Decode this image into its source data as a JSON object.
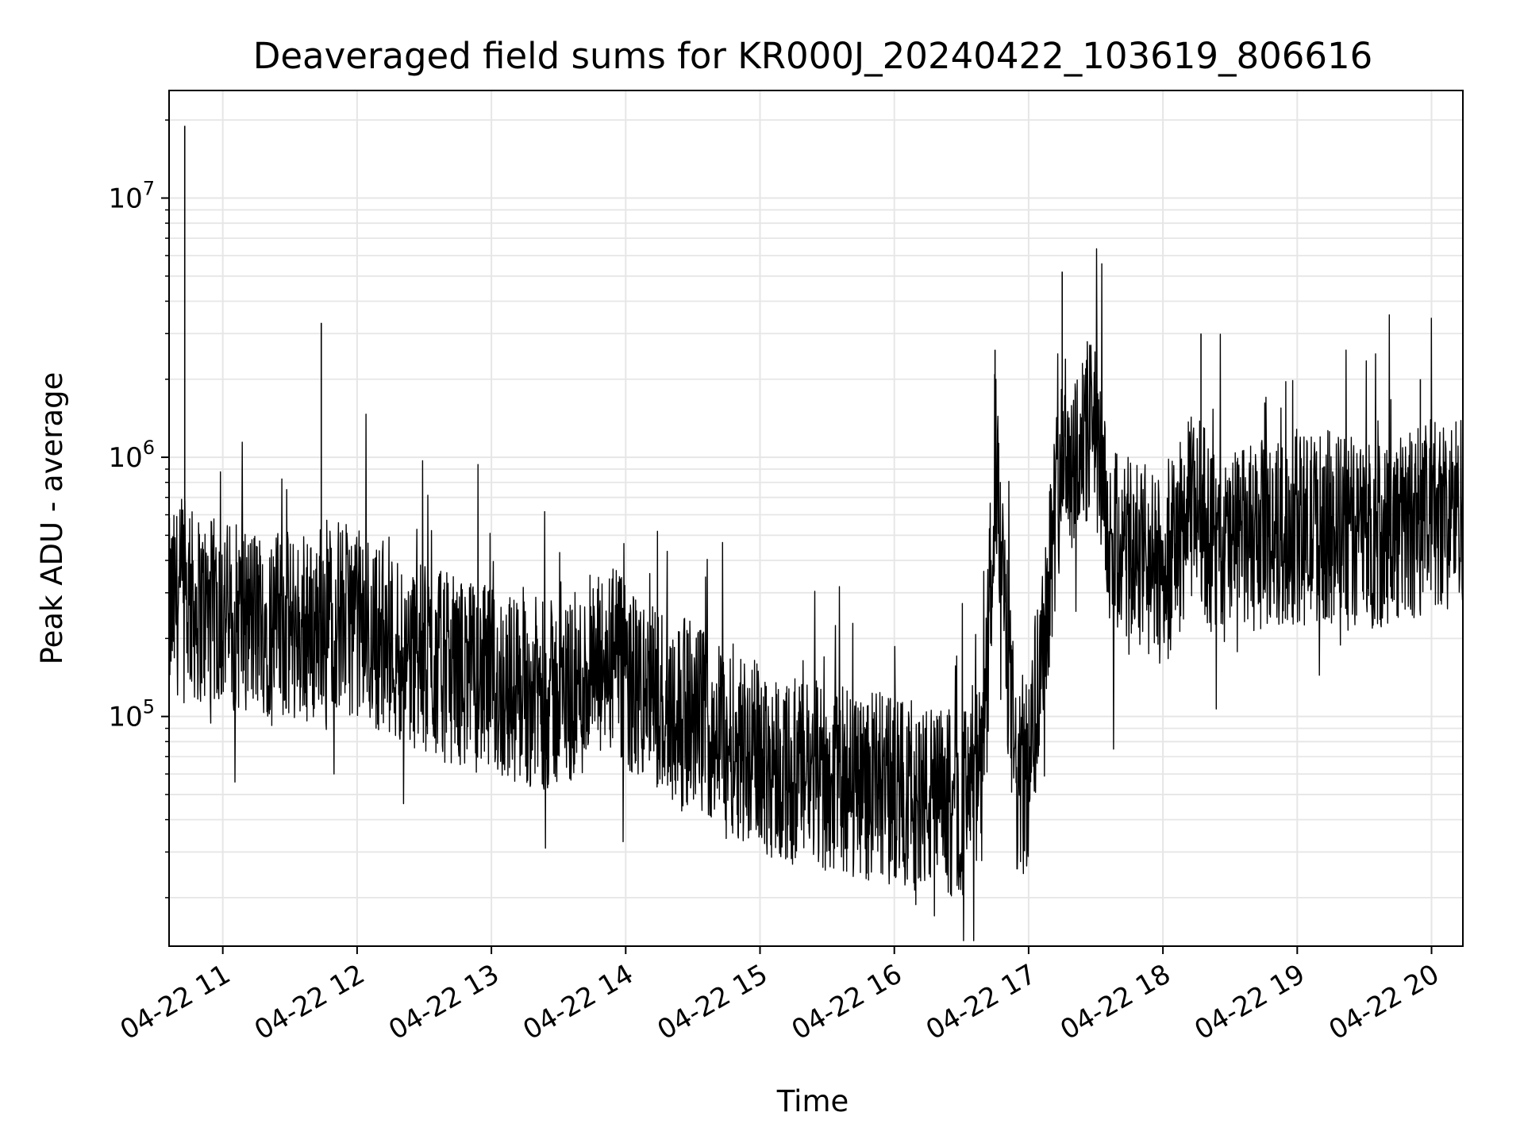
{
  "chart_data": {
    "type": "line",
    "title": "Deaveraged field sums for KR000J_20240422_103619_806616",
    "xlabel": "Time",
    "ylabel": "Peak ADU - average",
    "yscale": "log",
    "grid": true,
    "line_color": "#000000",
    "grid_color": "#e6e6e6",
    "xlim": [
      "2024-04-22 10:36",
      "2024-04-22 20:14"
    ],
    "ylim": [
      13000,
      26000000
    ],
    "x_ticks": [
      {
        "label": "04-22 11",
        "time": "2024-04-22 11:00"
      },
      {
        "label": "04-22 12",
        "time": "2024-04-22 12:00"
      },
      {
        "label": "04-22 13",
        "time": "2024-04-22 13:00"
      },
      {
        "label": "04-22 14",
        "time": "2024-04-22 14:00"
      },
      {
        "label": "04-22 15",
        "time": "2024-04-22 15:00"
      },
      {
        "label": "04-22 16",
        "time": "2024-04-22 16:00"
      },
      {
        "label": "04-22 17",
        "time": "2024-04-22 17:00"
      },
      {
        "label": "04-22 18",
        "time": "2024-04-22 18:00"
      },
      {
        "label": "04-22 19",
        "time": "2024-04-22 19:00"
      },
      {
        "label": "04-22 20",
        "time": "2024-04-22 20:00"
      }
    ],
    "y_ticks": [
      {
        "base": "10",
        "exp": "5",
        "value": 100000
      },
      {
        "base": "10",
        "exp": "6",
        "value": 1000000
      },
      {
        "base": "10",
        "exp": "7",
        "value": 10000000
      }
    ],
    "series": [
      {
        "x": [
          "2024-04-22 10:36",
          "2024-04-22 10:42",
          "2024-04-22 10:48",
          "2024-04-22 10:54",
          "2024-04-22 11:00",
          "2024-04-22 11:10",
          "2024-04-22 11:20",
          "2024-04-22 11:30",
          "2024-04-22 11:40",
          "2024-04-22 11:45",
          "2024-04-22 11:50",
          "2024-04-22 12:00",
          "2024-04-22 12:15",
          "2024-04-22 12:30",
          "2024-04-22 12:45",
          "2024-04-22 13:00",
          "2024-04-22 13:15",
          "2024-04-22 13:30",
          "2024-04-22 13:45",
          "2024-04-22 13:55",
          "2024-04-22 14:00",
          "2024-04-22 14:15",
          "2024-04-22 14:30",
          "2024-04-22 14:45",
          "2024-04-22 15:00",
          "2024-04-22 15:15",
          "2024-04-22 15:30",
          "2024-04-22 15:45",
          "2024-04-22 16:00",
          "2024-04-22 16:15",
          "2024-04-22 16:30",
          "2024-04-22 16:40",
          "2024-04-22 16:45",
          "2024-04-22 16:50",
          "2024-04-22 16:55",
          "2024-04-22 17:00",
          "2024-04-22 17:15",
          "2024-04-22 17:20",
          "2024-04-22 17:25",
          "2024-04-22 17:30",
          "2024-04-22 17:35",
          "2024-04-22 17:40",
          "2024-04-22 17:50",
          "2024-04-22 18:00",
          "2024-04-22 18:15",
          "2024-04-22 18:25",
          "2024-04-22 18:30",
          "2024-04-22 18:45",
          "2024-04-22 19:00",
          "2024-04-22 19:15",
          "2024-04-22 19:30",
          "2024-04-22 19:45",
          "2024-04-22 20:00",
          "2024-04-22 20:14"
        ],
        "values": [
          250000,
          300000,
          260000,
          250000,
          250000,
          240000,
          230000,
          220000,
          210000,
          260000,
          250000,
          230000,
          190000,
          165000,
          150000,
          135000,
          125000,
          120000,
          140000,
          170000,
          135000,
          115000,
          100000,
          85000,
          70000,
          60000,
          58000,
          55000,
          52000,
          48000,
          45000,
          60000,
          1000000,
          200000,
          50000,
          60000,
          1100000,
          1000000,
          1200000,
          1300000,
          500000,
          450000,
          400000,
          350000,
          700000,
          400000,
          450000,
          500000,
          520000,
          550000,
          500000,
          520000,
          600000,
          650000
        ]
      }
    ],
    "peaks": [
      {
        "x": "2024-04-22 10:43",
        "y": 19000000
      },
      {
        "x": "2024-04-22 11:44",
        "y": 3300000
      },
      {
        "x": "2024-04-22 17:15",
        "y": 5200000
      },
      {
        "x": "2024-04-22 18:17",
        "y": 3000000
      },
      {
        "x": "2024-04-22 19:55",
        "y": 2000000
      },
      {
        "x": "2024-04-22 16:45",
        "y": 2600000
      }
    ]
  }
}
